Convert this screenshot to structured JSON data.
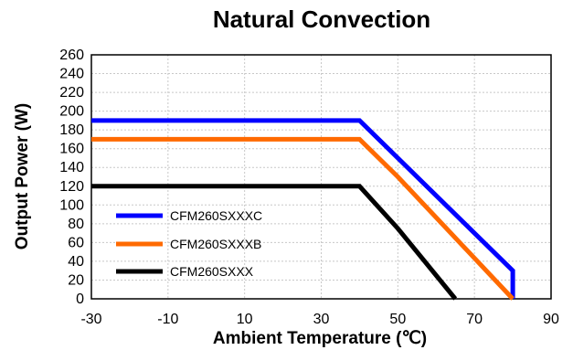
{
  "chart_data": {
    "type": "line",
    "title": "Natural Convection",
    "xlabel": "Ambient Temperature (℃)",
    "ylabel": "Output Power (W)",
    "xlim": [
      -30,
      90
    ],
    "ylim": [
      0,
      260
    ],
    "x_ticks": [
      -30,
      -10,
      10,
      30,
      50,
      70,
      90
    ],
    "y_ticks": [
      0,
      20,
      40,
      60,
      80,
      100,
      120,
      140,
      160,
      180,
      200,
      220,
      240,
      260
    ],
    "grid": true,
    "legend_position": "lower-left",
    "series": [
      {
        "name": "CFM260SXXXC",
        "color": "#0000ff",
        "points": [
          [
            -30,
            190
          ],
          [
            40,
            190
          ],
          [
            80,
            30
          ],
          [
            80,
            0
          ]
        ]
      },
      {
        "name": "CFM260SXXXB",
        "color": "#ff6a00",
        "points": [
          [
            -30,
            170
          ],
          [
            40,
            170
          ],
          [
            50,
            130
          ],
          [
            80,
            0
          ]
        ]
      },
      {
        "name": "CFM260SXXX",
        "color": "#000000",
        "points": [
          [
            -30,
            120
          ],
          [
            40,
            120
          ],
          [
            50,
            75
          ],
          [
            65,
            0
          ]
        ]
      }
    ]
  }
}
